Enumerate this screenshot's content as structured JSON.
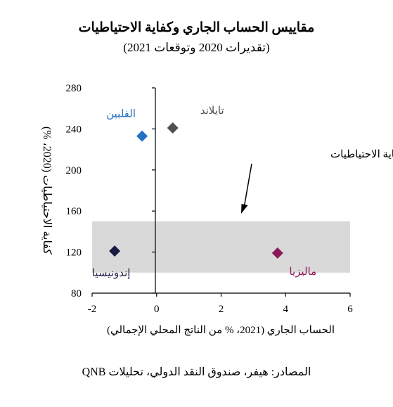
{
  "chart_data": {
    "type": "scatter",
    "title": "مقاييس الحساب الجاري وكفاية الاحتياطيات",
    "subtitle": "(تقديرات 2020 وتوقعات 2021)",
    "xlabel": "الحساب الجاري (2021، % من الناتج المحلي الإجمالي)",
    "ylabel": "كفاية الاحتياطيات (2020، %)",
    "xlim": [
      -2,
      6
    ],
    "ylim": [
      80,
      280
    ],
    "x_ticks": [
      "-2",
      "0",
      "2",
      "4",
      "6"
    ],
    "y_ticks": [
      "80",
      "120",
      "160",
      "200",
      "240",
      "280"
    ],
    "grid": false,
    "points": [
      {
        "name": "الفلبين",
        "x": -0.45,
        "y": 233,
        "color": "#2471C3"
      },
      {
        "name": "تايلاند",
        "x": 0.5,
        "y": 241,
        "color": "#505050"
      },
      {
        "name": "إندونيسيا",
        "x": -1.3,
        "y": 121,
        "color": "#1A1A40"
      },
      {
        "name": "ماليزيا",
        "x": 3.75,
        "y": 119,
        "color": "#8C1A5A"
      }
    ],
    "safe_zone": {
      "label": "المنطقة الآمنة لكفاية الاحتياطيات",
      "y_range": [
        100,
        150
      ],
      "color": "#D9D9D9"
    },
    "source": "المصادر: هيفر، صندوق النقد الدولي، تحليلات QNB"
  }
}
